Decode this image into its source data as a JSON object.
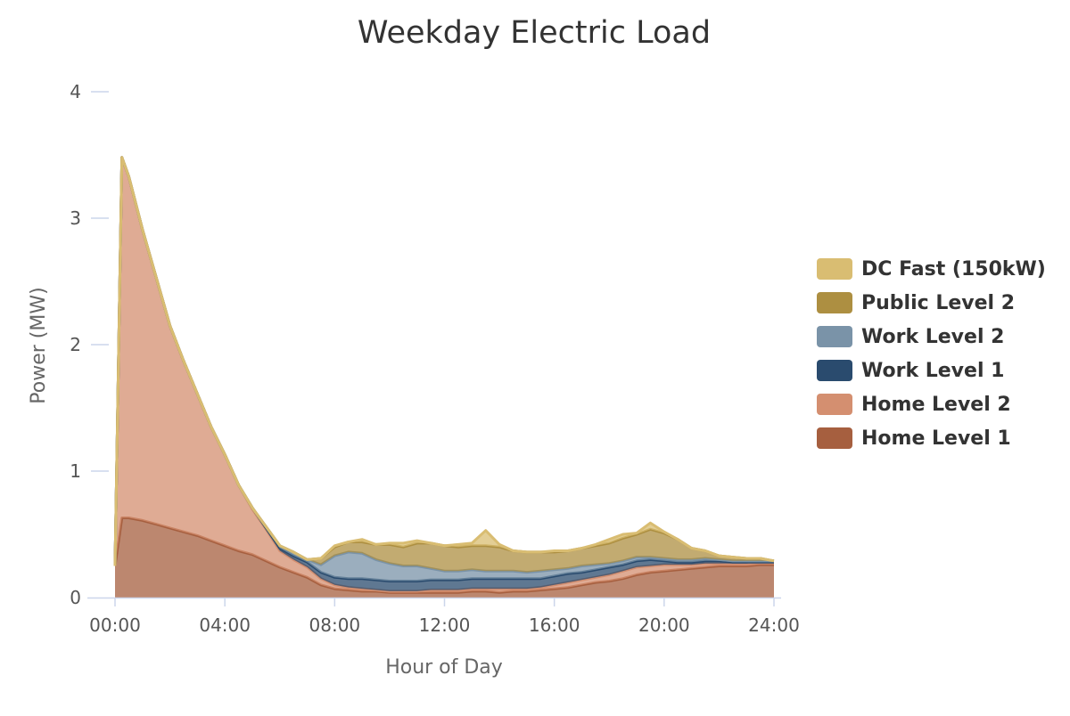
{
  "chart_data": {
    "type": "area",
    "stacked": true,
    "title": "Weekday Electric Load",
    "xlabel": "Hour of Day",
    "ylabel": "Power (MW)",
    "xlim": [
      0,
      24
    ],
    "ylim": [
      0,
      4
    ],
    "x_ticks": [
      "00:00",
      "04:00",
      "08:00",
      "12:00",
      "16:00",
      "20:00",
      "24:00"
    ],
    "y_ticks": [
      "0",
      "1",
      "2",
      "3",
      "4"
    ],
    "legend_position": "right",
    "x": [
      0,
      0.25,
      0.5,
      1,
      1.5,
      2,
      2.5,
      3,
      3.5,
      4,
      4.5,
      5,
      5.5,
      6,
      6.5,
      7,
      7.5,
      8,
      8.5,
      9,
      9.5,
      10,
      10.5,
      11,
      11.5,
      12,
      12.5,
      13,
      13.5,
      14,
      14.5,
      15,
      15.5,
      16,
      16.5,
      17,
      17.5,
      18,
      18.5,
      19,
      19.5,
      20,
      20.5,
      21,
      21.5,
      22,
      22.5,
      23,
      23.5,
      24
    ],
    "series": [
      {
        "name": "Home Level 1",
        "color": "#a65f3f",
        "values": [
          0.25,
          0.63,
          0.63,
          0.61,
          0.58,
          0.55,
          0.52,
          0.49,
          0.45,
          0.41,
          0.37,
          0.34,
          0.29,
          0.24,
          0.2,
          0.16,
          0.1,
          0.07,
          0.06,
          0.05,
          0.05,
          0.04,
          0.04,
          0.04,
          0.04,
          0.04,
          0.04,
          0.05,
          0.05,
          0.04,
          0.05,
          0.05,
          0.06,
          0.07,
          0.08,
          0.1,
          0.12,
          0.13,
          0.15,
          0.18,
          0.2,
          0.21,
          0.22,
          0.23,
          0.24,
          0.25,
          0.25,
          0.25,
          0.26,
          0.26
        ]
      },
      {
        "name": "Home Level 2",
        "color": "#d48f70",
        "values": [
          0.0,
          2.85,
          2.7,
          2.3,
          1.95,
          1.6,
          1.35,
          1.12,
          0.9,
          0.72,
          0.52,
          0.36,
          0.25,
          0.13,
          0.1,
          0.08,
          0.05,
          0.03,
          0.02,
          0.02,
          0.01,
          0.01,
          0.01,
          0.01,
          0.02,
          0.02,
          0.02,
          0.02,
          0.02,
          0.03,
          0.02,
          0.02,
          0.02,
          0.03,
          0.04,
          0.04,
          0.04,
          0.05,
          0.06,
          0.06,
          0.05,
          0.05,
          0.04,
          0.03,
          0.03,
          0.02,
          0.02,
          0.02,
          0.02,
          0.02
        ]
      },
      {
        "name": "Work Level 1",
        "color": "#2a4b6e",
        "values": [
          0.0,
          0.0,
          0.0,
          0.0,
          0.0,
          0.0,
          0.0,
          0.0,
          0.0,
          0.0,
          0.0,
          0.01,
          0.01,
          0.02,
          0.03,
          0.04,
          0.05,
          0.06,
          0.07,
          0.08,
          0.08,
          0.08,
          0.08,
          0.08,
          0.08,
          0.08,
          0.08,
          0.08,
          0.08,
          0.08,
          0.08,
          0.08,
          0.07,
          0.07,
          0.07,
          0.06,
          0.06,
          0.06,
          0.05,
          0.05,
          0.05,
          0.03,
          0.02,
          0.02,
          0.02,
          0.02,
          0.01,
          0.01,
          0.0,
          0.0
        ]
      },
      {
        "name": "Work Level 2",
        "color": "#7a93a8",
        "values": [
          0.0,
          0.0,
          0.0,
          0.0,
          0.0,
          0.0,
          0.0,
          0.0,
          0.0,
          0.0,
          0.0,
          0.0,
          0.01,
          0.02,
          0.03,
          0.02,
          0.06,
          0.17,
          0.21,
          0.2,
          0.16,
          0.14,
          0.12,
          0.12,
          0.09,
          0.07,
          0.07,
          0.07,
          0.06,
          0.06,
          0.06,
          0.05,
          0.06,
          0.05,
          0.04,
          0.05,
          0.04,
          0.03,
          0.03,
          0.03,
          0.02,
          0.02,
          0.02,
          0.02,
          0.02,
          0.01,
          0.01,
          0.01,
          0.01,
          0.01
        ]
      },
      {
        "name": "Public Level 2",
        "color": "#ad8f41",
        "values": [
          0.0,
          0.0,
          0.0,
          0.0,
          0.0,
          0.0,
          0.0,
          0.0,
          0.0,
          0.0,
          0.0,
          0.0,
          0.0,
          0.0,
          0.0,
          0.0,
          0.05,
          0.07,
          0.08,
          0.09,
          0.12,
          0.15,
          0.15,
          0.18,
          0.2,
          0.2,
          0.19,
          0.19,
          0.2,
          0.19,
          0.16,
          0.16,
          0.15,
          0.14,
          0.14,
          0.14,
          0.15,
          0.16,
          0.18,
          0.18,
          0.22,
          0.2,
          0.16,
          0.09,
          0.06,
          0.03,
          0.03,
          0.02,
          0.02,
          0.0
        ]
      },
      {
        "name": "DC Fast (150kW)",
        "color": "#d9bd72",
        "values": [
          0.0,
          0.0,
          0.0,
          0.0,
          0.0,
          0.0,
          0.0,
          0.0,
          0.0,
          0.0,
          0.0,
          0.0,
          0.0,
          0.0,
          0.0,
          0.0,
          0.0,
          0.01,
          0.0,
          0.02,
          0.0,
          0.01,
          0.03,
          0.02,
          0.0,
          0.0,
          0.02,
          0.02,
          0.12,
          0.02,
          0.0,
          0.0,
          0.0,
          0.01,
          0.0,
          0.0,
          0.01,
          0.03,
          0.03,
          0.01,
          0.05,
          0.01,
          0.0,
          0.0,
          0.0,
          0.0,
          0.0,
          0.0,
          0.0,
          0.0
        ]
      }
    ]
  }
}
